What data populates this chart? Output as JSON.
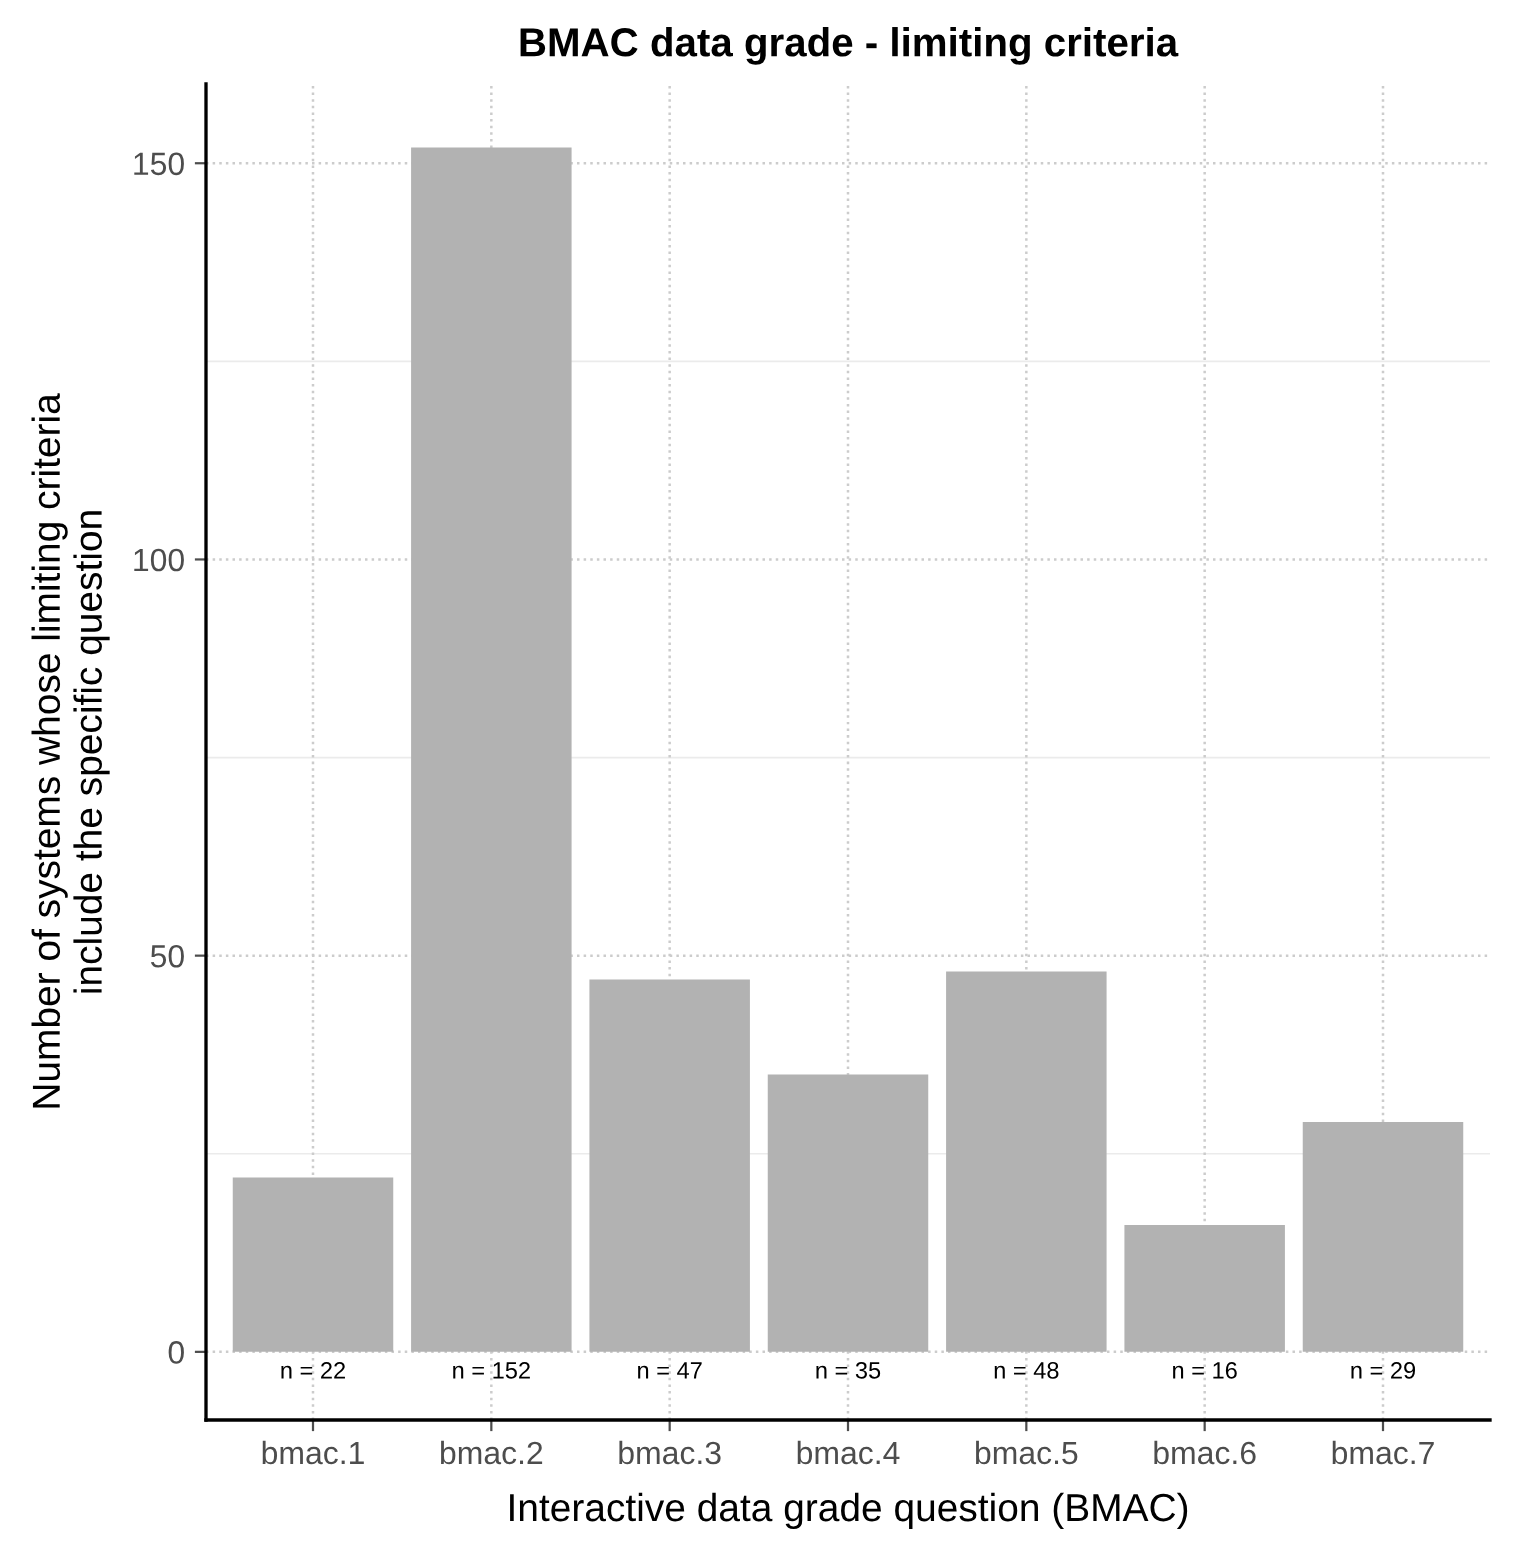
{
  "chart_data": {
    "type": "bar",
    "title": "BMAC data grade - limiting criteria",
    "xlabel": "Interactive data grade question (BMAC)",
    "ylabel": "Number of systems whose limiting criteria\ninclude the specific question",
    "categories": [
      "bmac.1",
      "bmac.2",
      "bmac.3",
      "bmac.4",
      "bmac.5",
      "bmac.6",
      "bmac.7"
    ],
    "values": [
      22,
      152,
      47,
      35,
      48,
      16,
      29
    ],
    "value_labels": [
      "n = 22",
      "n = 152",
      "n = 47",
      "n = 35",
      "n = 48",
      "n = 16",
      "n = 29"
    ],
    "color": "#b2b2b2",
    "ylim": [
      -8.6,
      160
    ],
    "yticks": [
      0,
      50,
      100,
      150
    ],
    "grid": true
  }
}
